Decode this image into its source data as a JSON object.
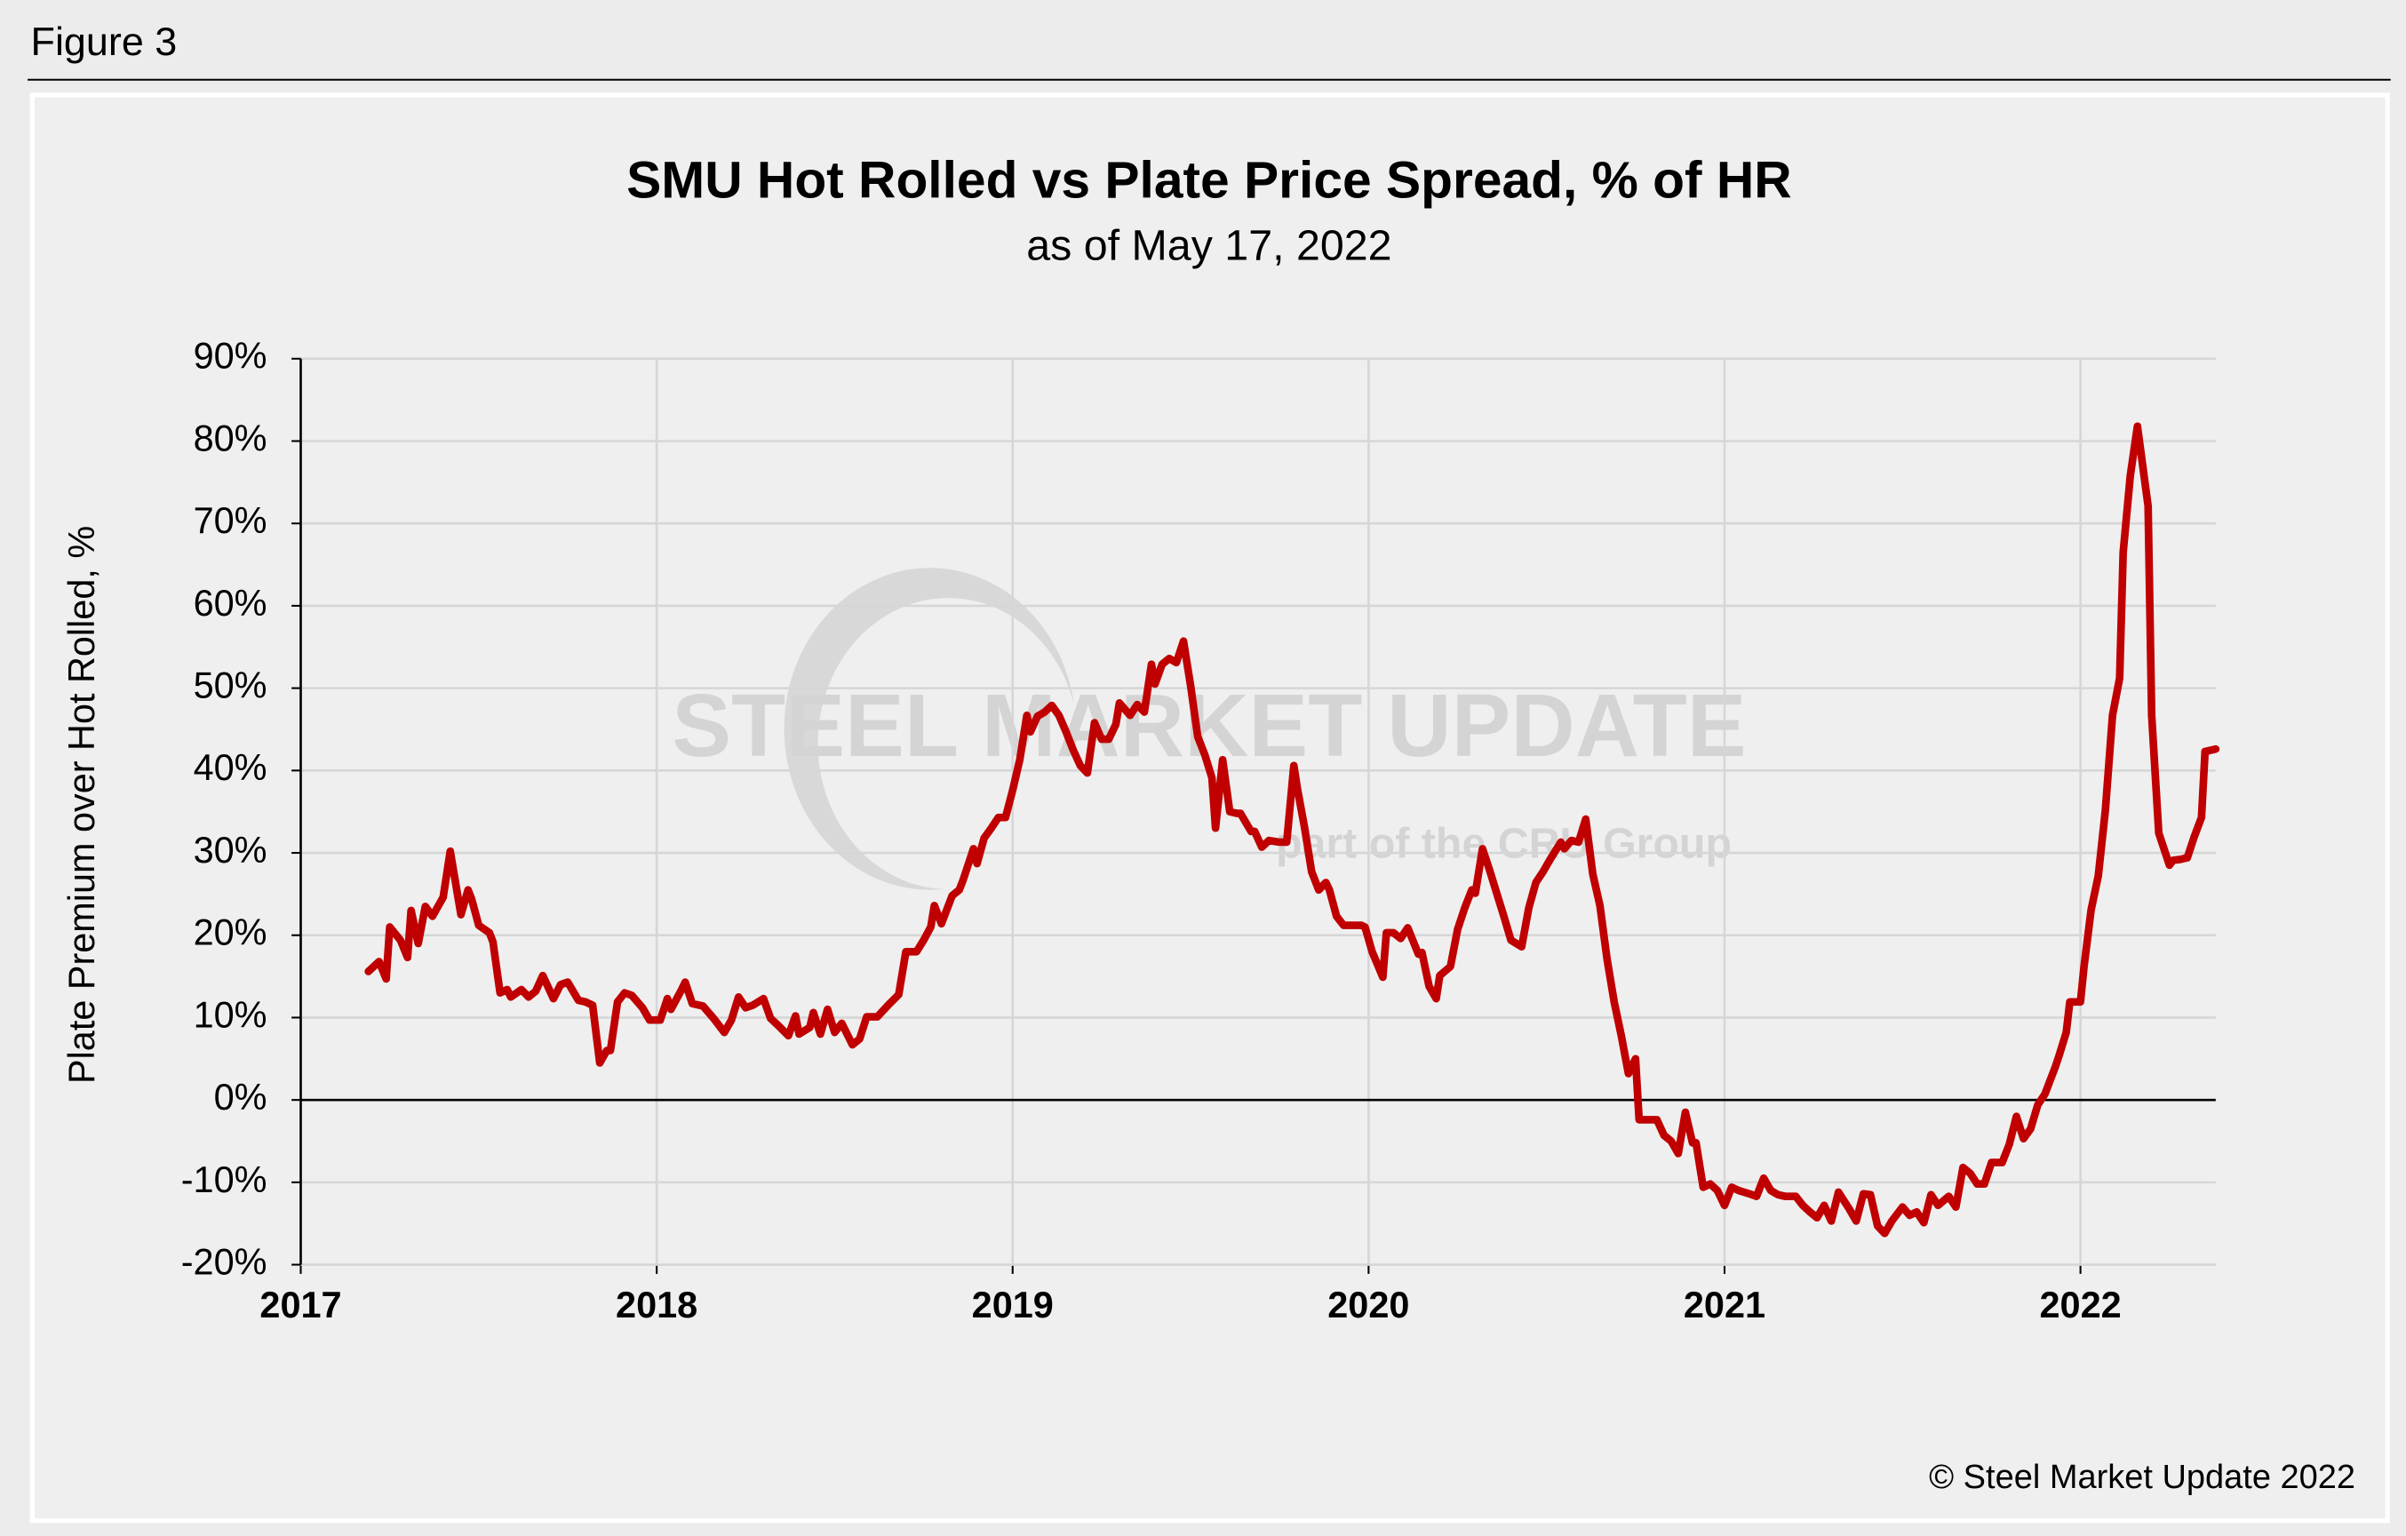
{
  "figure_label": "Figure 3",
  "chart_data": {
    "type": "line",
    "title": "SMU Hot Rolled vs Plate Price Spread, % of HR",
    "subtitle": "as of May 17, 2022",
    "y_label": "Plate Premium over Hot Rolled, %",
    "watermark": [
      "STEEL MARKET UPDATE",
      "part of the CRU Group"
    ],
    "credit": "© Steel Market Update 2022",
    "color": "#c00000",
    "grid": true,
    "xlim": [
      2017,
      2022.38
    ],
    "xticks": [
      2017,
      2018,
      2019,
      2020,
      2021,
      2022
    ],
    "ylim": [
      -20,
      90
    ],
    "yticks": [
      {
        "value": -20,
        "label": "-20%"
      },
      {
        "value": -10,
        "label": "-10%"
      },
      {
        "value": 0,
        "label": "0%"
      },
      {
        "value": 10,
        "label": "10%"
      },
      {
        "value": 20,
        "label": "20%"
      },
      {
        "value": 30,
        "label": "30%"
      },
      {
        "value": 40,
        "label": "40%"
      },
      {
        "value": 50,
        "label": "50%"
      },
      {
        "value": 60,
        "label": "60%"
      },
      {
        "value": 70,
        "label": "70%"
      },
      {
        "value": 80,
        "label": "80%"
      },
      {
        "value": 90,
        "label": "90%"
      }
    ],
    "x": [
      2017.19,
      2017.22,
      2017.24,
      2017.25,
      2017.28,
      2017.3,
      2017.31,
      2017.33,
      2017.35,
      2017.37,
      2017.4,
      2017.42,
      2017.45,
      2017.47,
      2017.48,
      2017.5,
      2017.53,
      2017.54,
      2017.56,
      2017.58,
      2017.59,
      2017.62,
      2017.64,
      2017.66,
      2017.68,
      2017.71,
      2017.73,
      2017.75,
      2017.78,
      2017.8,
      2017.82,
      2017.84,
      2017.86,
      2017.87,
      2017.89,
      2017.91,
      2017.93,
      2017.96,
      2017.98,
      2018.01,
      2018.03,
      2018.04,
      2018.07,
      2018.08,
      2018.1,
      2018.13,
      2018.16,
      2018.19,
      2018.21,
      2018.23,
      2018.25,
      2018.27,
      2018.3,
      2018.32,
      2018.34,
      2018.37,
      2018.39,
      2018.4,
      2018.43,
      2018.44,
      2018.46,
      2018.48,
      2018.5,
      2018.52,
      2018.55,
      2018.57,
      2018.59,
      2018.62,
      2018.65,
      2018.68,
      2018.7,
      2018.73,
      2018.75,
      2018.77,
      2018.78,
      2018.8,
      2018.83,
      2018.85,
      2018.86,
      2018.89,
      2018.9,
      2018.92,
      2018.94,
      2018.96,
      2018.98,
      2019,
      2019.02,
      2019.04,
      2019.05,
      2019.07,
      2019.09,
      2019.11,
      2019.13,
      2019.15,
      2019.17,
      2019.19,
      2019.21,
      2019.23,
      2019.25,
      2019.27,
      2019.29,
      2019.3,
      2019.33,
      2019.35,
      2019.37,
      2019.39,
      2019.4,
      2019.42,
      2019.44,
      2019.46,
      2019.48,
      2019.5,
      2019.52,
      2019.54,
      2019.56,
      2019.57,
      2019.59,
      2019.61,
      2019.63,
      2019.64,
      2019.67,
      2019.68,
      2019.7,
      2019.72,
      2019.75,
      2019.77,
      2019.79,
      2019.8,
      2019.82,
      2019.84,
      2019.86,
      2019.88,
      2019.89,
      2019.91,
      2019.93,
      2019.95,
      2019.98,
      2019.99,
      2020.01,
      2020.04,
      2020.05,
      2020.07,
      2020.09,
      2020.11,
      2020.14,
      2020.15,
      2020.17,
      2020.19,
      2020.2,
      2020.23,
      2020.25,
      2020.27,
      2020.29,
      2020.3,
      2020.32,
      2020.34,
      2020.36,
      2020.38,
      2020.4,
      2020.43,
      2020.45,
      2020.47,
      2020.49,
      2020.51,
      2020.54,
      2020.55,
      2020.57,
      2020.59,
      2020.61,
      2020.63,
      2020.65,
      2020.67,
      2020.69,
      2020.71,
      2020.73,
      2020.75,
      2020.76,
      2020.79,
      2020.81,
      2020.83,
      2020.85,
      2020.87,
      2020.89,
      2020.91,
      2020.92,
      2020.94,
      2020.96,
      2020.98,
      2021,
      2021.02,
      2021.04,
      2021.07,
      2021.09,
      2021.11,
      2021.13,
      2021.15,
      2021.17,
      2021.2,
      2021.22,
      2021.24,
      2021.26,
      2021.28,
      2021.3,
      2021.32,
      2021.35,
      2021.37,
      2021.39,
      2021.41,
      2021.43,
      2021.45,
      2021.47,
      2021.5,
      2021.52,
      2021.54,
      2021.56,
      2021.58,
      2021.6,
      2021.63,
      2021.65,
      2021.67,
      2021.69,
      2021.71,
      2021.73,
      2021.75,
      2021.78,
      2021.8,
      2021.82,
      2021.84,
      2021.86,
      2021.88,
      2021.9,
      2021.93,
      2021.94,
      2021.96,
      2021.97,
      2022,
      2022.01,
      2022.03,
      2022.05,
      2022.07,
      2022.09,
      2022.11,
      2022.12,
      2022.14,
      2022.16,
      2022.19,
      2022.2,
      2022.22,
      2022.25,
      2022.26,
      2022.28,
      2022.3,
      2022.32,
      2022.34,
      2022.35,
      2022.38
    ],
    "values": [
      15.6,
      16.8,
      14.7,
      21,
      19.4,
      17.3,
      23,
      19,
      23.5,
      22.3,
      24.6,
      30.2,
      22.5,
      25.5,
      24.4,
      21.2,
      20.3,
      19.2,
      13,
      13.4,
      12.5,
      13.4,
      12.5,
      13.2,
      15.1,
      12.3,
      14,
      14.3,
      12.1,
      11.9,
      11.5,
      4.5,
      6,
      6,
      11.9,
      13,
      12.7,
      11.2,
      9.7,
      9.7,
      12.3,
      11,
      13.4,
      14.3,
      11.7,
      11.4,
      9.9,
      8.2,
      9.7,
      12.5,
      11.2,
      11.5,
      12.3,
      9.9,
      9.1,
      7.8,
      10.2,
      8,
      8.8,
      10.6,
      8,
      11,
      8.2,
      9.3,
      6.7,
      7.4,
      10.1,
      10.1,
      11.5,
      12.8,
      18,
      18,
      19.4,
      21,
      23.6,
      21.4,
      24.8,
      25.5,
      26.6,
      30.5,
      28.7,
      31.8,
      33,
      34.3,
      34.3,
      37.6,
      41.3,
      46.7,
      44.7,
      46.6,
      47.1,
      47.9,
      46.7,
      44.7,
      42.5,
      40.6,
      39.7,
      45.8,
      43.8,
      43.8,
      45.6,
      48.2,
      46.7,
      48,
      47.1,
      52.9,
      50.5,
      52.9,
      53.6,
      53.1,
      55.7,
      50.3,
      44.1,
      41.9,
      39.1,
      33,
      41.3,
      35,
      34.8,
      34.8,
      32.6,
      32.6,
      30.7,
      31.5,
      31.3,
      31.3,
      40.6,
      37.8,
      33.1,
      27.7,
      25.5,
      26.4,
      25.5,
      22.3,
      21.2,
      21.2,
      21.2,
      21,
      18,
      14.9,
      20.3,
      20.3,
      19.6,
      20.9,
      17.7,
      17.9,
      13.8,
      12.3,
      15.1,
      16.2,
      20.7,
      23.3,
      25.5,
      25.1,
      30.5,
      27.9,
      25.1,
      22.3,
      19.4,
      18.6,
      23.3,
      26.4,
      27.7,
      29.2,
      31.3,
      30.5,
      31.5,
      31.3,
      34.1,
      27.4,
      23.6,
      17.1,
      11.9,
      7.8,
      3.2,
      5,
      -2.4,
      -2.4,
      -2.4,
      -4.3,
      -5,
      -6.5,
      -1.5,
      -5.2,
      -5.2,
      -10.6,
      -10.2,
      -11,
      -12.8,
      -10.6,
      -11,
      -11.4,
      -11.7,
      -9.5,
      -11,
      -11.5,
      -11.7,
      -11.7,
      -12.8,
      -13.6,
      -14.3,
      -12.8,
      -14.7,
      -11.2,
      -13.2,
      -14.7,
      -11.4,
      -11.5,
      -15.3,
      -16.2,
      -14.7,
      -13,
      -14,
      -13.6,
      -14.9,
      -11.5,
      -12.8,
      -11.7,
      -13,
      -8.2,
      -8.9,
      -10.2,
      -10.2,
      -7.6,
      -7.6,
      -5.4,
      -2,
      -4.7,
      -3.5,
      -0.6,
      0.7,
      4.1,
      5.4,
      8.2,
      11.9,
      11.9,
      16.2,
      23.1,
      27.2,
      35.2,
      46.7,
      51.2,
      66.5,
      75.8,
      81.8,
      72.1,
      46.7,
      32.4,
      28.5,
      29.1,
      29.2,
      29.4,
      32,
      34.3,
      42.3,
      42.6
    ]
  }
}
